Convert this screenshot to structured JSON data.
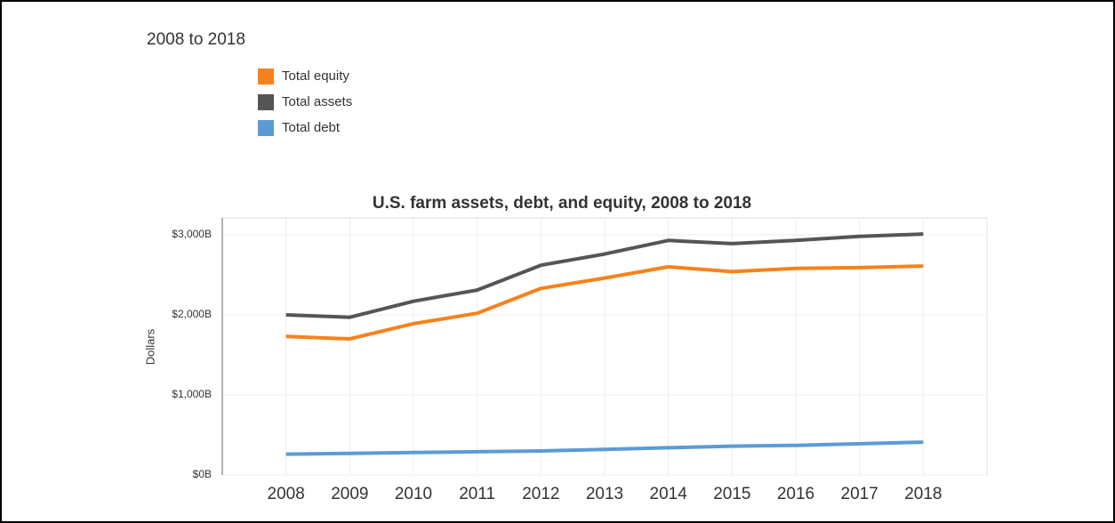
{
  "chart_data": {
    "type": "line",
    "heading": "2008 to 2018",
    "title": "U.S. farm assets, debt, and equity, 2008 to 2018",
    "ylabel": "Dollars",
    "x": [
      2008,
      2009,
      2010,
      2011,
      2012,
      2013,
      2014,
      2015,
      2016,
      2017,
      2018
    ],
    "xlim": [
      2007,
      2019
    ],
    "xticks": [
      2008,
      2009,
      2010,
      2011,
      2012,
      2013,
      2014,
      2015,
      2016,
      2017,
      2018
    ],
    "ylim": [
      0,
      3300
    ],
    "yticks": [
      {
        "value": 0,
        "label": "$0B"
      },
      {
        "value": 1000,
        "label": "$1,000B"
      },
      {
        "value": 2000,
        "label": "$2,000B"
      },
      {
        "value": 3000,
        "label": "$3,000B"
      }
    ],
    "grid": true,
    "legend": "top-left",
    "series": [
      {
        "name": "Total equity",
        "color": "#f7821b",
        "values": [
          1730,
          1700,
          1890,
          2020,
          2330,
          2460,
          2600,
          2540,
          2580,
          2590,
          2610
        ]
      },
      {
        "name": "Total assets",
        "color": "#555555",
        "values": [
          2000,
          1970,
          2170,
          2310,
          2620,
          2760,
          2930,
          2890,
          2930,
          2980,
          3010
        ]
      },
      {
        "name": "Total debt",
        "color": "#5b9bd5",
        "values": [
          260,
          270,
          280,
          290,
          300,
          320,
          340,
          360,
          370,
          390,
          410
        ]
      }
    ]
  }
}
